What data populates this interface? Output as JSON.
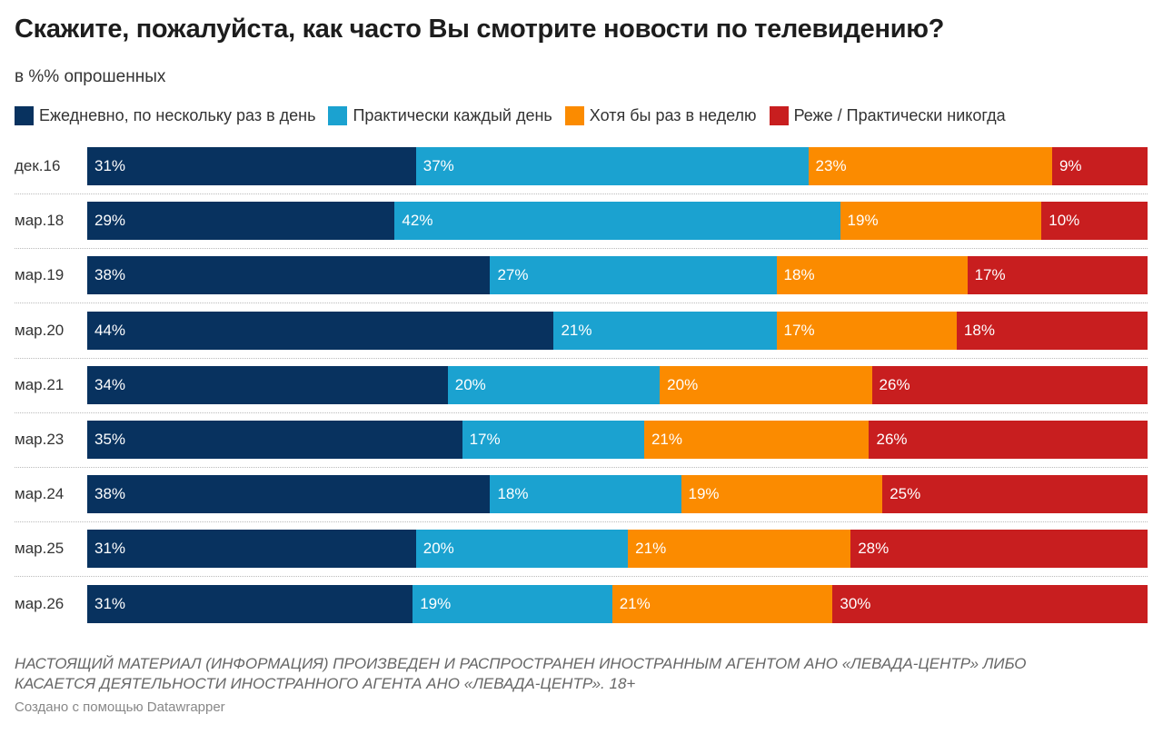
{
  "title": "Скажите, пожалуйста, как часто Вы смотрите новости по телевидению?",
  "subtitle": "в %% опрошенных",
  "chart_data": {
    "type": "bar",
    "orientation": "horizontal",
    "stacked": true,
    "categories": [
      "дек.16",
      "мар.18",
      "мар.19",
      "мар.20",
      "мар.21",
      "мар.23",
      "мар.24",
      "мар.25",
      "мар.26"
    ],
    "series": [
      {
        "name": "Ежедневно, по нескольку раз в день",
        "color": "#08325f",
        "values": [
          31,
          29,
          38,
          44,
          34,
          35,
          38,
          31,
          31
        ]
      },
      {
        "name": "Практически каждый день",
        "color": "#1ba2d0",
        "values": [
          37,
          42,
          27,
          21,
          20,
          17,
          18,
          20,
          19
        ]
      },
      {
        "name": "Хотя бы раз в неделю",
        "color": "#fb8b00",
        "values": [
          23,
          19,
          18,
          17,
          20,
          21,
          19,
          21,
          21
        ]
      },
      {
        "name": "Реже / Практически никогда",
        "color": "#c81e1f",
        "values": [
          9,
          10,
          17,
          18,
          26,
          26,
          25,
          28,
          30
        ]
      }
    ],
    "unit": "%",
    "legend": "top"
  },
  "footer": {
    "note_line1": "НАСТОЯЩИЙ МАТЕРИАЛ (ИНФОРМАЦИЯ) ПРОИЗВЕДЕН И РАСПРОСТРАНЕН ИНОСТРАННЫМ АГЕНТОМ АНО «ЛЕВАДА-ЦЕНТР» ЛИБО",
    "note_line2": "КАСАЕТСЯ ДЕЯТЕЛЬНОСТИ ИНОСТРАННОГО АГЕНТА АНО «ЛЕВАДА-ЦЕНТР». 18+",
    "credit": "Создано с помощью Datawrapper"
  }
}
